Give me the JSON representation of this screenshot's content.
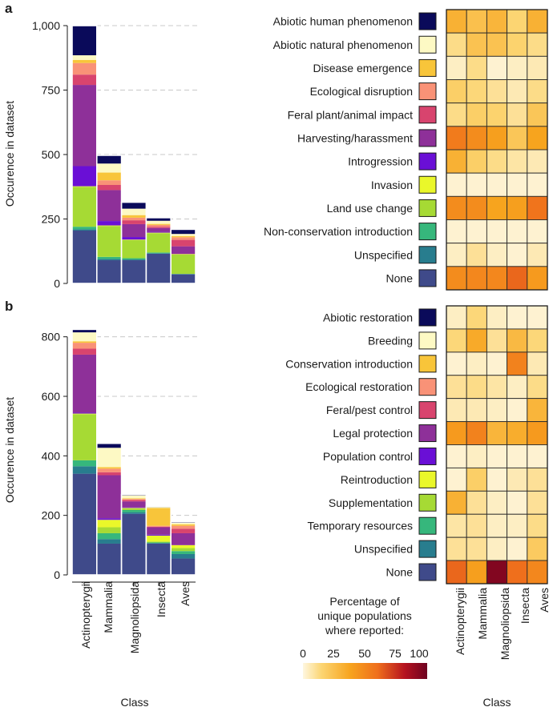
{
  "panel_labels": [
    "a",
    "b"
  ],
  "classes": [
    "Actinopterygii",
    "Mammalia",
    "Magnoliopsida",
    "Insecta",
    "Aves"
  ],
  "xlabel": "Class",
  "ylabel": "Occurence in dataset",
  "legend": {
    "title_lines": [
      "Percentage of",
      "unique populations",
      "where reported:"
    ],
    "ticks": [
      "0",
      "25",
      "50",
      "75",
      "100"
    ]
  },
  "colors": {
    "threat_palette": [
      "#0a0a5a",
      "#fdf9c4",
      "#f8c53a",
      "#f99277",
      "#d8446e",
      "#8e3099",
      "#6a0fd6",
      "#eaf72a",
      "#a6da34",
      "#36b77c",
      "#287d8e",
      "#3f4a8a"
    ],
    "gradient": [
      "#fef7e0",
      "#fcd572",
      "#f7a41e",
      "#ef6f1c",
      "#b5121f",
      "#6e0221"
    ],
    "grid": "#c8c8c8"
  },
  "chart_data": [
    {
      "type": "bar",
      "stacked": true,
      "panel": "a",
      "ylabel": "Occurence in dataset",
      "xlabel": "",
      "ylim": [
        0,
        1000
      ],
      "yticks": [
        0,
        250,
        500,
        750,
        1000
      ],
      "ytick_labels": [
        "0",
        "250",
        "500",
        "750",
        "1,000"
      ],
      "grid": true,
      "categories": [
        "Actinopterygii",
        "Mammalia",
        "Magnoliopsida",
        "Insecta",
        "Aves"
      ],
      "series": [
        {
          "name": "None",
          "color": "#3f4a8a",
          "values": [
            205,
            90,
            90,
            115,
            35
          ]
        },
        {
          "name": "Unspecified",
          "color": "#287d8e",
          "values": [
            5,
            5,
            3,
            2,
            2
          ]
        },
        {
          "name": "Non-conservation introduction",
          "color": "#36b77c",
          "values": [
            10,
            8,
            5,
            3,
            0
          ]
        },
        {
          "name": "Land use change",
          "color": "#a6da34",
          "values": [
            155,
            120,
            70,
            75,
            75
          ]
        },
        {
          "name": "Invasion",
          "color": "#eaf72a",
          "values": [
            2,
            2,
            2,
            2,
            2
          ]
        },
        {
          "name": "Introgression",
          "color": "#6a0fd6",
          "values": [
            78,
            17,
            10,
            3,
            0
          ]
        },
        {
          "name": "Harvesting/harassment",
          "color": "#8e3099",
          "values": [
            315,
            120,
            50,
            15,
            30
          ]
        },
        {
          "name": "Feral plant/animal impact",
          "color": "#d8446e",
          "values": [
            40,
            20,
            15,
            5,
            25
          ]
        },
        {
          "name": "Ecological disruption",
          "color": "#f99277",
          "values": [
            45,
            18,
            10,
            7,
            10
          ]
        },
        {
          "name": "Disease emergence",
          "color": "#f8c53a",
          "values": [
            12,
            30,
            10,
            4,
            5
          ]
        },
        {
          "name": "Abiotic natural phenomenon",
          "color": "#fdf9c4",
          "values": [
            18,
            35,
            25,
            12,
            8
          ]
        },
        {
          "name": "Abiotic human phenomenon",
          "color": "#0a0a5a",
          "values": [
            115,
            32,
            25,
            12,
            18
          ]
        }
      ]
    },
    {
      "type": "bar",
      "stacked": true,
      "panel": "b",
      "ylabel": "Occurence in dataset",
      "xlabel": "Class",
      "ylim": [
        0,
        830
      ],
      "yticks": [
        0,
        200,
        400,
        600,
        800
      ],
      "ytick_labels": [
        "0",
        "200",
        "400",
        "600",
        "800"
      ],
      "grid": true,
      "categories": [
        "Actinopterygii",
        "Mammalia",
        "Magnoliopsida",
        "Insecta",
        "Aves"
      ],
      "series": [
        {
          "name": "None",
          "color": "#3f4a8a",
          "values": [
            340,
            105,
            205,
            105,
            55
          ]
        },
        {
          "name": "Unspecified",
          "color": "#287d8e",
          "values": [
            25,
            15,
            5,
            2,
            15
          ]
        },
        {
          "name": "Temporary resources",
          "color": "#36b77c",
          "values": [
            20,
            20,
            8,
            2,
            10
          ]
        },
        {
          "name": "Supplementation",
          "color": "#a6da34",
          "values": [
            155,
            20,
            5,
            3,
            10
          ]
        },
        {
          "name": "Reintroduction",
          "color": "#eaf72a",
          "values": [
            2,
            25,
            2,
            20,
            10
          ]
        },
        {
          "name": "Population control",
          "color": "#6a0fd6",
          "values": [
            3,
            5,
            2,
            3,
            0
          ]
        },
        {
          "name": "Legal protection",
          "color": "#8e3099",
          "values": [
            195,
            145,
            20,
            25,
            40
          ]
        },
        {
          "name": "Feral/pest control",
          "color": "#d8446e",
          "values": [
            20,
            10,
            5,
            2,
            15
          ]
        },
        {
          "name": "Ecological restoration",
          "color": "#f99277",
          "values": [
            20,
            12,
            3,
            3,
            10
          ]
        },
        {
          "name": "Conservation introduction",
          "color": "#f8c53a",
          "values": [
            5,
            5,
            2,
            60,
            5
          ]
        },
        {
          "name": "Breeding",
          "color": "#fdf9c4",
          "values": [
            30,
            65,
            10,
            3,
            5
          ]
        },
        {
          "name": "Abiotic restoration",
          "color": "#0a0a5a",
          "values": [
            10,
            15,
            3,
            2,
            3
          ]
        }
      ]
    },
    {
      "type": "heatmap",
      "panel": "a",
      "value_range": [
        0,
        100
      ],
      "xlabel": "",
      "columns": [
        "Actinopterygii",
        "Mammalia",
        "Magnoliopsida",
        "Insecta",
        "Aves"
      ],
      "rows": [
        "Abiotic human phenomenon",
        "Abiotic natural phenomenon",
        "Disease emergence",
        "Ecological disruption",
        "Feral plant/animal impact",
        "Harvesting/harassment",
        "Introgression",
        "Invasion",
        "Land use change",
        "Non-conservation introduction",
        "Unspecified",
        "None"
      ],
      "row_colors": [
        "#0a0a5a",
        "#fdf9c4",
        "#f8c53a",
        "#f99277",
        "#d8446e",
        "#8e3099",
        "#6a0fd6",
        "#eaf72a",
        "#a6da34",
        "#36b77c",
        "#287d8e",
        "#3f4a8a"
      ],
      "values": [
        [
          32,
          25,
          30,
          15,
          32
        ],
        [
          12,
          24,
          24,
          16,
          12
        ],
        [
          4,
          12,
          2,
          4,
          6
        ],
        [
          18,
          14,
          10,
          6,
          12
        ],
        [
          12,
          18,
          16,
          10,
          22
        ],
        [
          55,
          48,
          40,
          22,
          38
        ],
        [
          32,
          18,
          12,
          8,
          6
        ],
        [
          2,
          2,
          2,
          2,
          2
        ],
        [
          48,
          48,
          38,
          40,
          58
        ],
        [
          2,
          2,
          2,
          2,
          2
        ],
        [
          4,
          10,
          4,
          2,
          6
        ],
        [
          48,
          50,
          50,
          62,
          42
        ]
      ]
    },
    {
      "type": "heatmap",
      "panel": "b",
      "value_range": [
        0,
        100
      ],
      "xlabel": "Class",
      "columns": [
        "Actinopterygii",
        "Mammalia",
        "Magnoliopsida",
        "Insecta",
        "Aves"
      ],
      "rows": [
        "Abiotic restoration",
        "Breeding",
        "Conservation introduction",
        "Ecological restoration",
        "Feral/pest control",
        "Legal protection",
        "Population control",
        "Reintroduction",
        "Supplementation",
        "Temporary resources",
        "Unspecified",
        "None"
      ],
      "row_colors": [
        "#0a0a5a",
        "#fdf9c4",
        "#f8c53a",
        "#f99277",
        "#d8446e",
        "#8e3099",
        "#6a0fd6",
        "#eaf72a",
        "#a6da34",
        "#36b77c",
        "#287d8e",
        "#3f4a8a"
      ],
      "values": [
        [
          4,
          14,
          4,
          2,
          2
        ],
        [
          14,
          35,
          10,
          28,
          14
        ],
        [
          2,
          4,
          2,
          52,
          6
        ],
        [
          10,
          12,
          8,
          4,
          12
        ],
        [
          6,
          6,
          4,
          2,
          30
        ],
        [
          42,
          52,
          30,
          34,
          42
        ],
        [
          2,
          4,
          2,
          2,
          2
        ],
        [
          2,
          18,
          2,
          6,
          10
        ],
        [
          32,
          10,
          4,
          2,
          10
        ],
        [
          8,
          10,
          4,
          4,
          12
        ],
        [
          10,
          10,
          4,
          2,
          20
        ],
        [
          62,
          40,
          95,
          60,
          50
        ]
      ]
    }
  ]
}
